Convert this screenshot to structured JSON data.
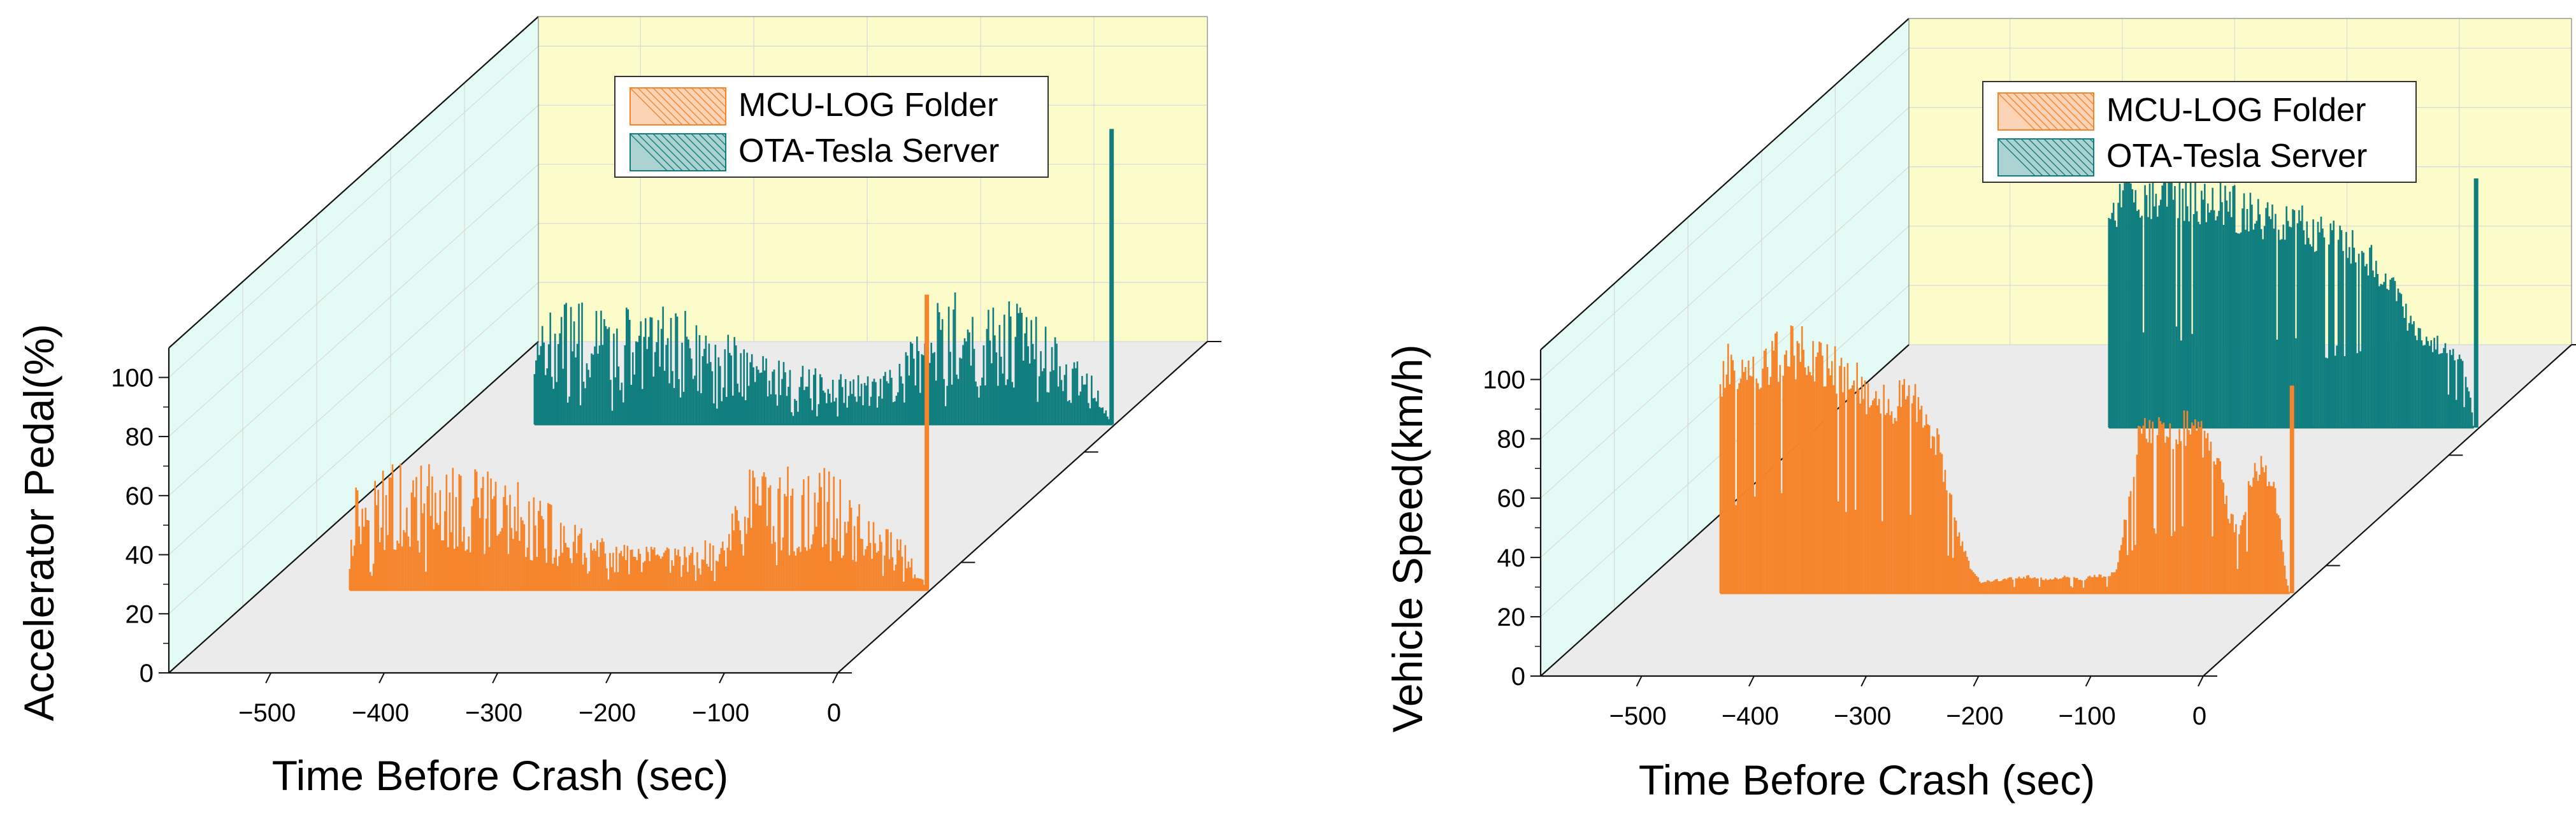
{
  "colors": {
    "mcu_series": "#F5842B",
    "ota_series": "#107E7E",
    "back_wall": "#FCFCCB",
    "side_wall": "#E3FBF4",
    "floor": "#EBEBEB",
    "axis": "#111111",
    "grid": "#D8D8D8"
  },
  "chart_data": [
    {
      "type": "bar",
      "projection": "3d-walls",
      "xlabel": "Time Before Crash (sec)",
      "ylabel": "Accelerator Pedal(%)",
      "xlim": [
        -590,
        0
      ],
      "ylim": [
        0,
        110
      ],
      "xticks": [
        -500,
        -400,
        -300,
        -200,
        -100,
        0
      ],
      "xtick_labels": [
        "−500",
        "−400",
        "−300",
        "−200",
        "−100",
        "0"
      ],
      "yticks": [
        0,
        20,
        40,
        60,
        80,
        100
      ],
      "ytick_labels": [
        "0",
        "20",
        "40",
        "60",
        "80",
        "100"
      ],
      "grid": true,
      "legend": {
        "placement": "top-right",
        "entries": [
          "MCU-LOG Folder",
          "OTA-Tesla Server"
        ]
      },
      "series": [
        {
          "name": "MCU-LOG Folder",
          "x_range": [
            -512,
            -2
          ],
          "envelope": [
            [
              -512,
              30
            ],
            [
              -480,
              36
            ],
            [
              -440,
              34
            ],
            [
              -400,
              33
            ],
            [
              -360,
              30
            ],
            [
              -320,
              20
            ],
            [
              -300,
              15
            ],
            [
              -260,
              12
            ],
            [
              -220,
              12
            ],
            [
              -190,
              14
            ],
            [
              -170,
              25
            ],
            [
              -150,
              40
            ],
            [
              -130,
              34
            ],
            [
              -110,
              32
            ],
            [
              -90,
              34
            ],
            [
              -70,
              28
            ],
            [
              -50,
              20
            ],
            [
              -30,
              16
            ],
            [
              -15,
              10
            ],
            [
              -8,
              4
            ]
          ],
          "spike": {
            "x": -3,
            "value": 100
          }
        },
        {
          "name": "OTA-Tesla Server",
          "x_range": [
            -512,
            -2
          ],
          "envelope": [
            [
              -512,
              28
            ],
            [
              -480,
              34
            ],
            [
              -440,
              32
            ],
            [
              -400,
              32
            ],
            [
              -360,
              30
            ],
            [
              -330,
              24
            ],
            [
              -300,
              18
            ],
            [
              -260,
              15
            ],
            [
              -220,
              15
            ],
            [
              -190,
              18
            ],
            [
              -170,
              28
            ],
            [
              -150,
              38
            ],
            [
              -130,
              34
            ],
            [
              -110,
              34
            ],
            [
              -90,
              35
            ],
            [
              -70,
              30
            ],
            [
              -50,
              24
            ],
            [
              -30,
              18
            ],
            [
              -18,
              12
            ],
            [
              -8,
              4
            ]
          ],
          "spike": {
            "x": -3,
            "value": 100
          }
        }
      ]
    },
    {
      "type": "area",
      "projection": "3d-walls",
      "xlabel": "Time Before Crash (sec)",
      "ylabel": "Vehicle Speed(km/h)",
      "xlim": [
        -590,
        0
      ],
      "ylim": [
        0,
        110
      ],
      "xticks": [
        -500,
        -400,
        -300,
        -200,
        -100,
        0
      ],
      "xtick_labels": [
        "−500",
        "−400",
        "−300",
        "−200",
        "−100",
        "0"
      ],
      "yticks": [
        0,
        20,
        40,
        60,
        80,
        100
      ],
      "ytick_labels": [
        "0",
        "20",
        "40",
        "60",
        "80",
        "100"
      ],
      "grid": true,
      "legend": {
        "placement": "top-right",
        "entries": [
          "MCU-LOG Folder",
          "OTA-Tesla Server"
        ]
      },
      "series": [
        {
          "name": "MCU-LOG Folder",
          "x_range": [
            -512,
            -5
          ],
          "envelope": [
            [
              -512,
              80
            ],
            [
              -500,
              82
            ],
            [
              -480,
              80
            ],
            [
              -460,
              86
            ],
            [
              -440,
              88
            ],
            [
              -420,
              82
            ],
            [
              -400,
              80
            ],
            [
              -380,
              72
            ],
            [
              -360,
              68
            ],
            [
              -340,
              72
            ],
            [
              -330,
              64
            ],
            [
              -320,
              56
            ],
            [
              -310,
              40
            ],
            [
              -300,
              22
            ],
            [
              -290,
              10
            ],
            [
              -280,
              4
            ],
            [
              -260,
              5
            ],
            [
              -240,
              6
            ],
            [
              -220,
              5
            ],
            [
              -200,
              6
            ],
            [
              -190,
              5
            ],
            [
              -180,
              6
            ],
            [
              -160,
              7
            ],
            [
              -150,
              30
            ],
            [
              -140,
              55
            ],
            [
              -130,
              58
            ],
            [
              -120,
              60
            ],
            [
              -110,
              56
            ],
            [
              -100,
              60
            ],
            [
              -90,
              58
            ],
            [
              -80,
              55
            ],
            [
              -70,
              52
            ],
            [
              -60,
              30
            ],
            [
              -50,
              20
            ],
            [
              -40,
              40
            ],
            [
              -30,
              46
            ],
            [
              -20,
              42
            ],
            [
              -12,
              20
            ],
            [
              -8,
              5
            ],
            [
              -5,
              0
            ]
          ],
          "spike": {
            "x": -3,
            "value": 70
          }
        },
        {
          "name": "OTA-Tesla Server",
          "x_range": [
            -330,
            -5
          ],
          "envelope": [
            [
              -330,
              80
            ],
            [
              -320,
              82
            ],
            [
              -300,
              84
            ],
            [
              -280,
              85
            ],
            [
              -260,
              84
            ],
            [
              -240,
              83
            ],
            [
              -220,
              80
            ],
            [
              -200,
              76
            ],
            [
              -180,
              72
            ],
            [
              -160,
              74
            ],
            [
              -140,
              70
            ],
            [
              -120,
              68
            ],
            [
              -100,
              62
            ],
            [
              -80,
              52
            ],
            [
              -60,
              36
            ],
            [
              -40,
              30
            ],
            [
              -25,
              30
            ],
            [
              -15,
              22
            ],
            [
              -8,
              10
            ],
            [
              -5,
              0
            ]
          ],
          "spike": {
            "x": -3,
            "value": 84
          }
        }
      ]
    }
  ]
}
